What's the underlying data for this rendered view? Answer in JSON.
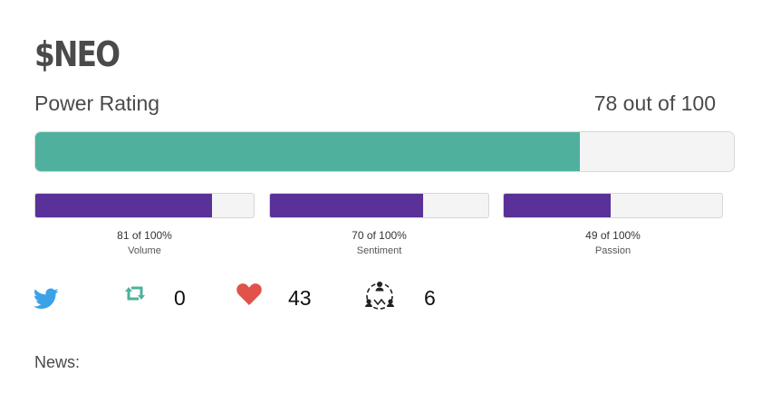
{
  "header": {
    "ticker": "$NEO"
  },
  "power": {
    "label": "Power Rating",
    "score_text": "78 out of 100",
    "value": 78,
    "max": 100,
    "bar_color": "#4fb19d"
  },
  "metrics": [
    {
      "value_text": "81 of 100%",
      "label": "Volume",
      "value": 81
    },
    {
      "value_text": "70 of 100%",
      "label": "Sentiment",
      "value": 70
    },
    {
      "value_text": "49 of 100%",
      "label": "Passion",
      "value": 49
    }
  ],
  "metric_bar_color": "#5a3198",
  "social": {
    "twitter_icon": "twitter-icon",
    "retweets": {
      "icon": "retweet-icon",
      "count": "0",
      "color": "#4fb19d"
    },
    "likes": {
      "icon": "heart-icon",
      "count": "43",
      "color": "#e0524a"
    },
    "followers": {
      "icon": "people-network-icon",
      "count": "6"
    }
  },
  "news": {
    "label": "News:"
  }
}
